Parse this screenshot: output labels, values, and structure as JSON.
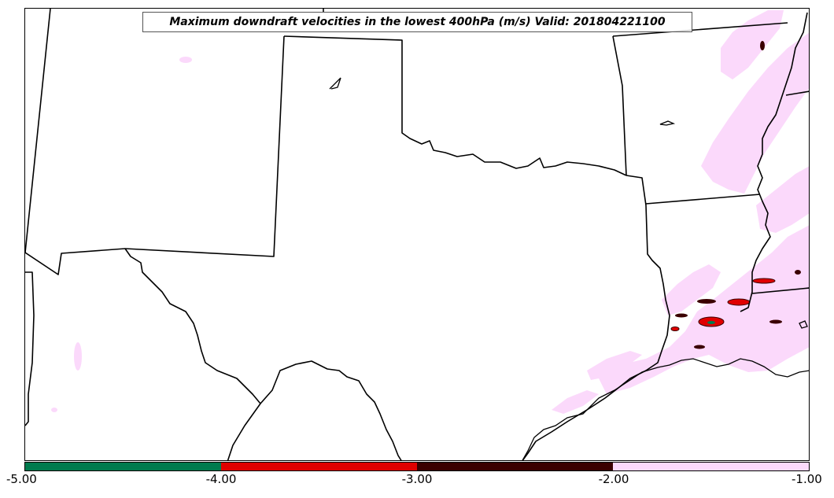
{
  "map": {
    "title": "Maximum downdraft velocities in the lowest 400hPa (m/s) Valid: 201804221100",
    "region": "Texas, Oklahoma, Louisiana and surrounding states",
    "field": "maximum downdraft velocity",
    "units": "m/s"
  },
  "legend": {
    "ticks": [
      "-5.00",
      "-4.00",
      "-3.00",
      "-2.00",
      "-1.00"
    ],
    "bins": [
      {
        "range": [
          -5,
          -4
        ],
        "color": "#007a4d"
      },
      {
        "range": [
          -4,
          -3
        ],
        "color": "#e00000"
      },
      {
        "range": [
          -3,
          -2
        ],
        "color": "#3a0000"
      },
      {
        "range": [
          -2,
          -1
        ],
        "color": "#fbd9fb"
      }
    ]
  },
  "colors": {
    "weak_downdraft": "#fbd9fb",
    "moderate_downdraft": "#3a0000",
    "strong_downdraft": "#e00000",
    "severe_downdraft": "#007a4d",
    "boundaries": "#000000"
  }
}
